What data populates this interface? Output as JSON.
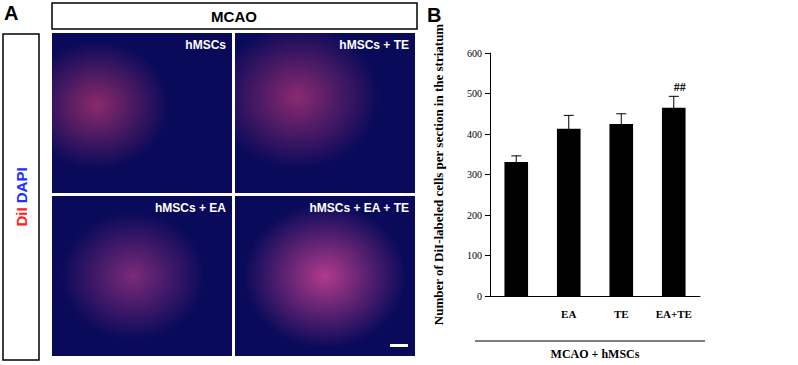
{
  "chart_data": {
    "type": "bar",
    "title": "B",
    "categories": [
      null,
      "EA",
      "TE",
      "EA+TE"
    ],
    "values": [
      331,
      413,
      425,
      465
    ],
    "errors": [
      15,
      33,
      25,
      28
    ],
    "color": "#000000",
    "ylabel": "Number of DiI-labeled cells per section in the striatum",
    "xlabel": "MCAO + hMSCs",
    "ylim": [
      0,
      600
    ],
    "yticks": [
      0,
      100,
      200,
      300,
      400,
      500,
      600
    ],
    "annotations": [
      {
        "category": "EA+TE",
        "text": "##"
      }
    ],
    "grid": false
  },
  "panel_a": {
    "label": "A",
    "header": "MCAO",
    "stain": [
      {
        "text": "DiI",
        "color": "#ff2020"
      },
      {
        "text": "DAPI",
        "color": "#2030ff"
      }
    ],
    "tiles": [
      "hMSCs",
      "hMSCs + TE",
      "hMSCs + EA",
      "hMSCs + EA + TE"
    ]
  }
}
